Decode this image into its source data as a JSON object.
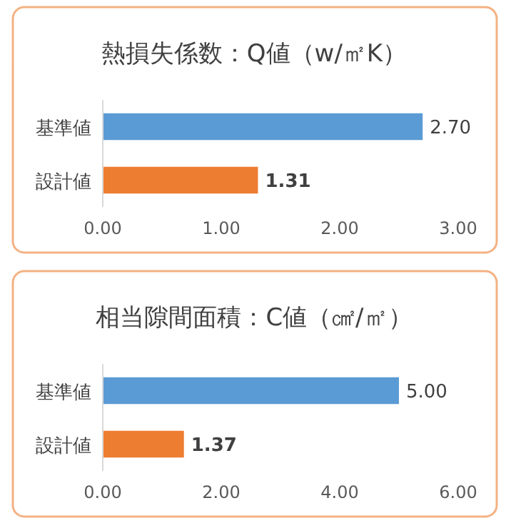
{
  "chart_data": [
    {
      "type": "bar",
      "orientation": "horizontal",
      "title": "熱損失係数：Q値（w/㎡K）",
      "categories": [
        "基準値",
        "設計値"
      ],
      "values": [
        2.7,
        1.31
      ],
      "colors": [
        "#5b9bd5",
        "#ed7d31"
      ],
      "value_labels": [
        "2.70",
        "1.31"
      ],
      "xlim": [
        0,
        3
      ],
      "xticks": [
        {
          "value": 0,
          "label": "0.00"
        },
        {
          "value": 1,
          "label": "1.00"
        },
        {
          "value": 2,
          "label": "2.00"
        },
        {
          "value": 3,
          "label": "3.00"
        }
      ]
    },
    {
      "type": "bar",
      "orientation": "horizontal",
      "title": "相当隙間面積：C値（㎠/㎡）",
      "categories": [
        "基準値",
        "設計値"
      ],
      "values": [
        5.0,
        1.37
      ],
      "colors": [
        "#5b9bd5",
        "#ed7d31"
      ],
      "value_labels": [
        "5.00",
        "1.37"
      ],
      "xlim": [
        0,
        6
      ],
      "xticks": [
        {
          "value": 0,
          "label": "0.00"
        },
        {
          "value": 2,
          "label": "2.00"
        },
        {
          "value": 4,
          "label": "4.00"
        },
        {
          "value": 6,
          "label": "6.00"
        }
      ]
    }
  ]
}
